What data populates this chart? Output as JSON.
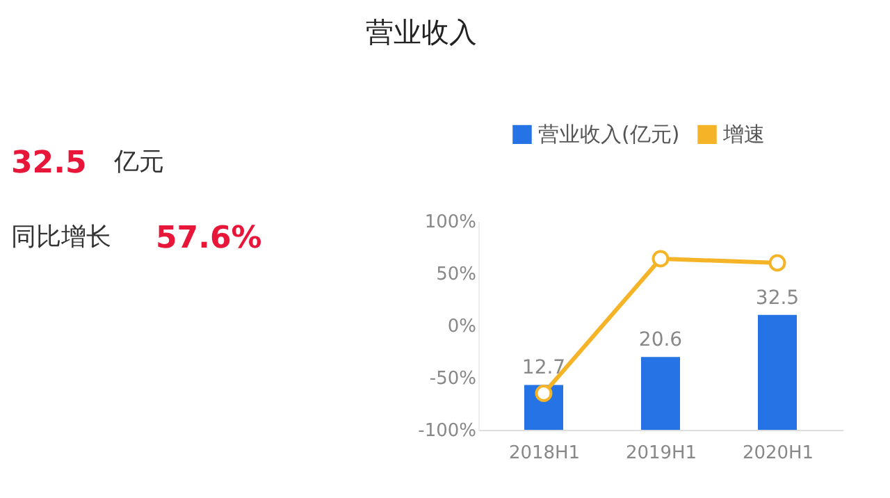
{
  "chart_data": {
    "type": "bar",
    "title": "营业收入",
    "categories": [
      "2018H1",
      "2019H1",
      "2020H1"
    ],
    "series": [
      {
        "name": "营业收入(亿元)",
        "axis": "y2",
        "color": "#2673e6",
        "values": [
          12.7,
          20.6,
          32.5
        ],
        "value_labels": [
          "12.7",
          "20.6",
          "32.5"
        ]
      },
      {
        "name": "增速",
        "type": "line",
        "color": "#f5b428",
        "marker": "circle",
        "values": [
          -65,
          64,
          60
        ]
      }
    ],
    "ylim": [
      -100,
      100
    ],
    "yticks": [
      {
        "value": -100,
        "label": "-100%"
      },
      {
        "value": -50,
        "label": "-50%"
      },
      {
        "value": 0,
        "label": "0%"
      },
      {
        "value": 50,
        "label": "50%"
      },
      {
        "value": 100,
        "label": "100%"
      }
    ],
    "y2lim": [
      0,
      59
    ],
    "legend": "top",
    "grid": false,
    "annotations": [
      "32.5",
      "亿元",
      "同比增长",
      "57.6%"
    ]
  }
}
